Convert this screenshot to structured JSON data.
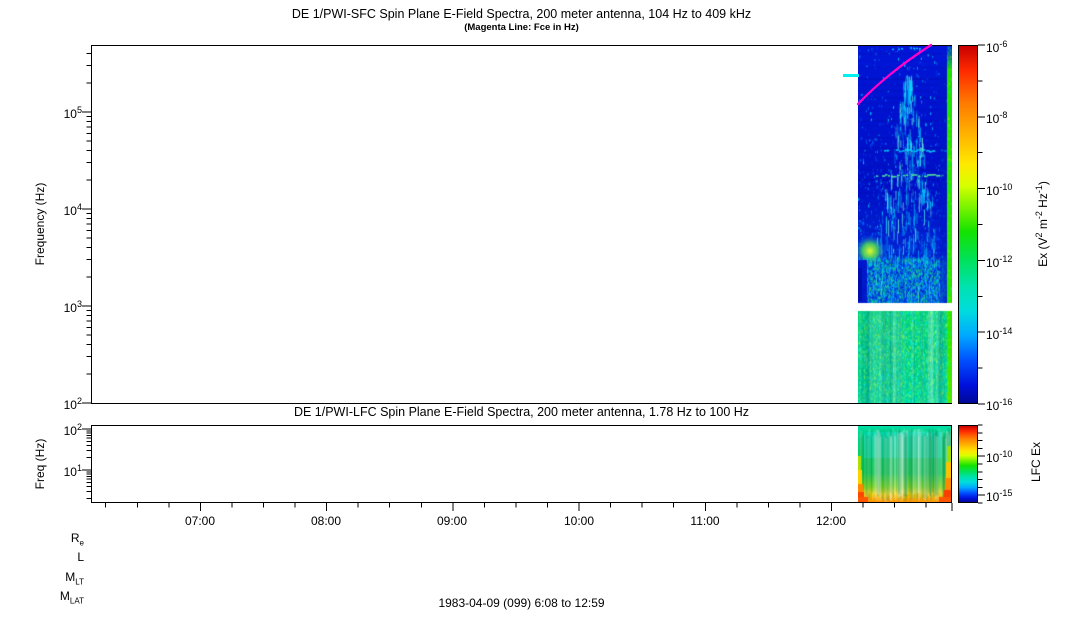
{
  "titles": {
    "sfc_title": "DE 1/PWI-SFC  Spin Plane E-Field Spectra, 200 meter antenna, 104 Hz to 409 kHz",
    "sfc_subtitle": "(Magenta Line: Fce in Hz)",
    "lfc_title": "DE 1/PWI-LFC  Spin Plane E-Field Spectra, 200 meter antenna, 1.78 Hz to 100 Hz",
    "caption": "1983-04-09 (099) 6:08 to 12:59"
  },
  "sfc": {
    "ylabel": "Frequency (Hz)",
    "yticks": [
      {
        "b": "10",
        "e": "5"
      },
      {
        "b": "10",
        "e": "4"
      },
      {
        "b": "10",
        "e": "3"
      },
      {
        "b": "10",
        "e": "2"
      }
    ],
    "cbar": {
      "ticks": [
        {
          "b": "10",
          "e": "-6"
        },
        {
          "b": "10",
          "e": "-8"
        },
        {
          "b": "10",
          "e": "-10"
        },
        {
          "b": "10",
          "e": "-12"
        },
        {
          "b": "10",
          "e": "-14"
        },
        {
          "b": "10",
          "e": "-16"
        }
      ],
      "label_parts": {
        "p1": "Ex (V",
        "s1": "2",
        "p2": " m",
        "s2": "-2",
        "p3": " Hz",
        "s3": "-1",
        "p4": ")"
      }
    }
  },
  "lfc": {
    "ylabel": "Freq (Hz)",
    "yticks": [
      {
        "b": "10",
        "e": "2"
      },
      {
        "b": "10",
        "e": "1"
      }
    ],
    "cbar": {
      "ticks": [
        {
          "b": "10",
          "e": "-10"
        },
        {
          "b": "10",
          "e": "-15"
        }
      ],
      "label": "LFC Ex"
    }
  },
  "xaxis": {
    "ticks": [
      "07:00",
      "08:00",
      "09:00",
      "10:00",
      "11:00",
      "12:00"
    ]
  },
  "orbit": {
    "rows": [
      {
        "m": "R",
        "s": "e"
      },
      {
        "m": "L",
        "s": ""
      },
      {
        "m": "M",
        "s": "LT"
      },
      {
        "m": "M",
        "s": "LAT"
      }
    ]
  },
  "chart_data": [
    {
      "id": "SFC",
      "type": "heatmap",
      "instrument": "DE 1/PWI-SFC",
      "title": "DE 1/PWI-SFC  Spin Plane E-Field Spectra, 200 meter antenna, 104 Hz to 409 kHz",
      "subtitle": "(Magenta Line: Fce in Hz)",
      "date": "1983-04-09 (099)",
      "time_range": [
        "6:08",
        "12:59"
      ],
      "xticks": [
        "07:00",
        "08:00",
        "09:00",
        "10:00",
        "11:00",
        "12:00"
      ],
      "xtick_minor_interval_minutes": 15,
      "ylabel": "Frequency (Hz)",
      "yscale": "log",
      "ylim_hz": [
        104,
        409000
      ],
      "ytick_labels": [
        "10^2",
        "10^3",
        "10^4",
        "10^5"
      ],
      "colorbar": {
        "label": "Ex (V^2 m^-2 Hz^-1)",
        "scale": "log",
        "min": 1e-16,
        "max": 1e-06,
        "tick_labels": [
          "10^-6",
          "10^-8",
          "10^-10",
          "10^-12",
          "10^-14",
          "10^-16"
        ],
        "palette": "rainbow, red = high, dark blue = low"
      },
      "coverage": {
        "data_time_span": [
          "~12:13",
          "12:59"
        ],
        "note": "panel is blank (no data) before ~12:13"
      },
      "fce_line_points": [
        {
          "t": "~12:13",
          "hz": 120000
        },
        {
          "t": "~12:25",
          "hz": 250000
        },
        {
          "t": "~12:35",
          "hz": 345000
        },
        {
          "t": "~12:47",
          "hz": "exits top of panel (>409 kHz)"
        }
      ],
      "data_gap_band": {
        "around_hz": 1000,
        "appearance": "horizontal white no-data gap just below 10^3 Hz"
      },
      "features": [
        "background above 1 kHz: dark blue (~10^-15 to 10^-16 V^2 m^-2 Hz^-1) with cyan speckle",
        "funnel-shaped cyan emission centered ~12:35-12:40 widening toward lower frequencies",
        "bright yellow-green enhancement (~10^-10) near 3 kHz at ~12:16",
        "narrow green horizontal band near 1.5-2 kHz across the data interval",
        "below 1 kHz: fairly uniform cyan-green (~10^-12 to 10^-13)",
        "bright green vertical stripe at right edge (~12:58-12:59)"
      ]
    },
    {
      "id": "LFC",
      "type": "heatmap",
      "instrument": "DE 1/PWI-LFC",
      "title": "DE 1/PWI-LFC  Spin Plane E-Field Spectra, 200 meter antenna, 1.78 Hz to 100 Hz",
      "ylabel": "Freq (Hz)",
      "yscale": "log",
      "ylim_hz": [
        1.78,
        100
      ],
      "ytick_labels": [
        "10^1",
        "10^2"
      ],
      "colorbar": {
        "label": "LFC Ex",
        "scale": "log",
        "tick_labels": [
          "10^-10",
          "10^-15"
        ],
        "palette": "rainbow, red = high, dark blue = low"
      },
      "coverage": {
        "data_time_span": [
          "~12:13",
          "12:59"
        ],
        "note": "panel is blank (no data) before ~12:13"
      },
      "features": [
        "mid-band ~5-60 Hz mostly green/cyan (~10^-12)",
        "cyan band near 60-100 Hz",
        "yellow-to-orange enhancement at lowest frequencies (<3 Hz)",
        "orange-red bursts at the start and end edges of the interval (~10^-9)"
      ]
    }
  ]
}
